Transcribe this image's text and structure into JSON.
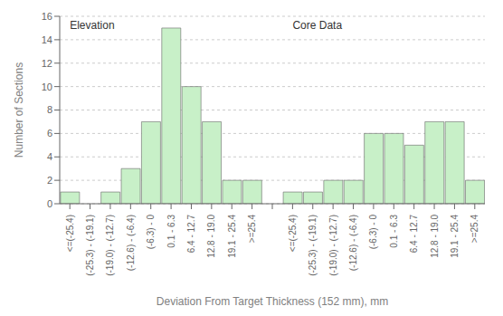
{
  "chart_data": {
    "type": "bar",
    "categories": [
      "<=(-25.4)",
      "(-25.3) - (-19.1)",
      "(-19.0) - (-12.7)",
      "(-12.6) - (-6.4)",
      "(-6.3) - 0",
      "0.1 - 6.3",
      "6.4 - 12.7",
      "12.8 - 19.0",
      "19.1 - 25.4",
      ">=25.4",
      null,
      "<=(-25.4)",
      "(-25.3) - (-19.1)",
      "(-19.0) - (-12.7)",
      "(-12.6) - (-6.4)",
      "(-6.3) - 0",
      "0.1 - 6.3",
      "6.4 - 12.7",
      "12.8 - 19.0",
      "19.1 - 25.4",
      ">=25.4"
    ],
    "values": [
      1,
      0,
      1,
      3,
      7,
      15,
      10,
      7,
      2,
      2,
      null,
      1,
      1,
      2,
      2,
      6,
      6,
      5,
      7,
      7,
      2
    ],
    "color": "#c8f0c8",
    "xlabel": "Deviation From Target Thickness (152 mm), mm",
    "ylabel": "Number of Sections",
    "ylim": [
      0,
      16
    ],
    "yticks": [
      0,
      2,
      4,
      6,
      8,
      10,
      12,
      14,
      16
    ],
    "grid": true,
    "annotations": [
      {
        "text": "Elevation",
        "x": 0,
        "y": 15.6
      },
      {
        "text": "Core Data",
        "x": 11,
        "y": 15.6
      }
    ]
  }
}
